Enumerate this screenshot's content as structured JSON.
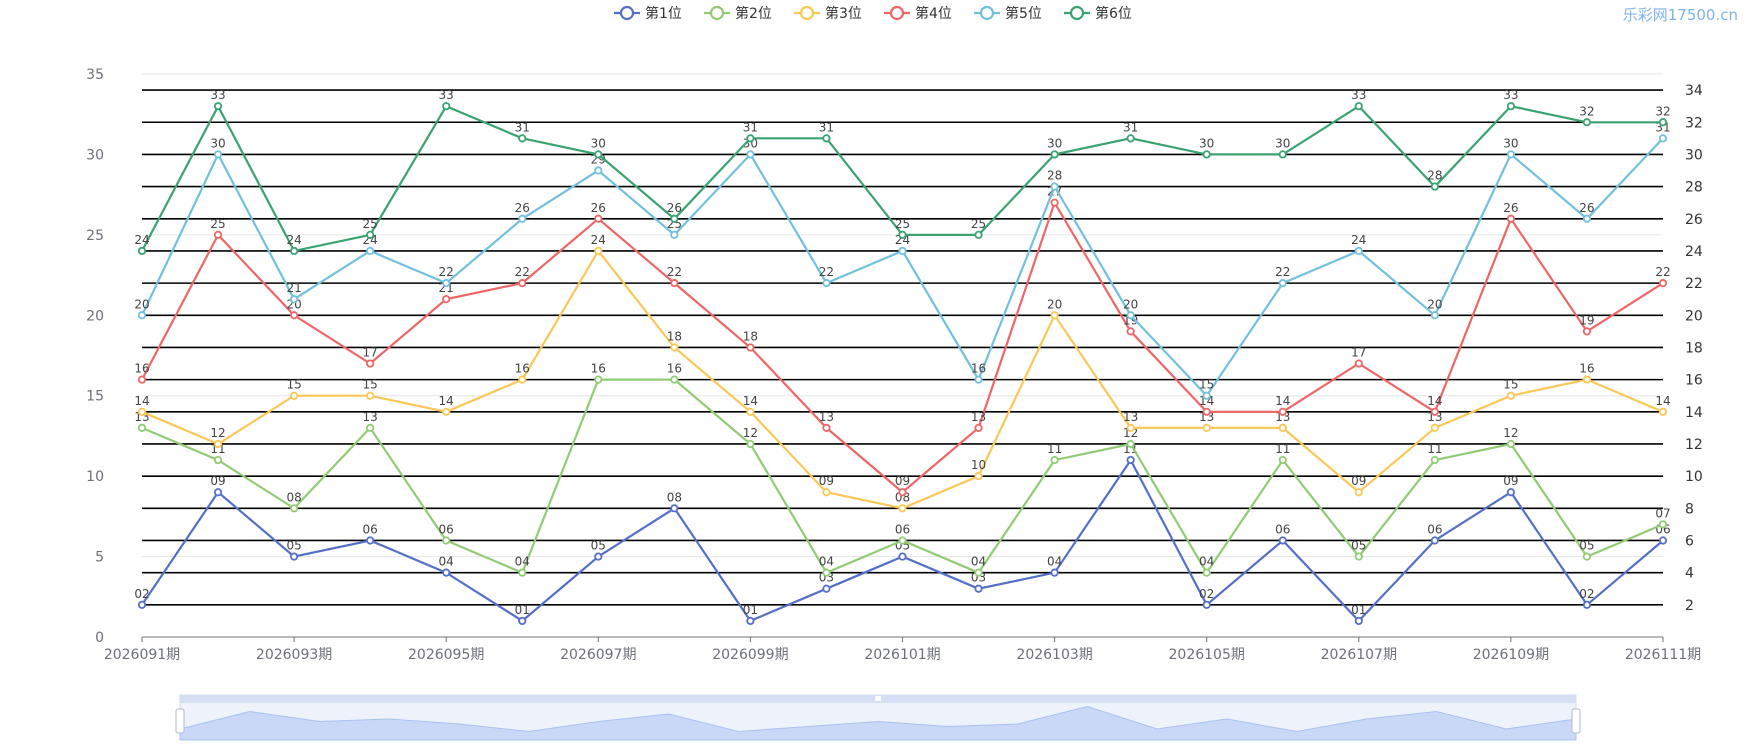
{
  "watermark": "乐彩网17500.cn",
  "chart_data": {
    "type": "line",
    "x": [
      "2026091期",
      "2026092期",
      "2026093期",
      "2026094期",
      "2026095期",
      "2026096期",
      "2026097期",
      "2026098期",
      "2026099期",
      "2026100期",
      "2026101期",
      "2026102期",
      "2026103期",
      "2026104期",
      "2026105期",
      "2026106期",
      "2026107期",
      "2026108期",
      "2026109期",
      "2026110期",
      "2026111期"
    ],
    "x_tick_labels": [
      "2026091期",
      "2026093期",
      "2026095期",
      "2026097期",
      "2026099期",
      "2026101期",
      "2026103期",
      "2026105期",
      "2026107期",
      "2026109期",
      "2026111期"
    ],
    "ylim": [
      0,
      35
    ],
    "y_ticks": [
      0,
      5,
      10,
      15,
      20,
      25,
      30,
      35
    ],
    "y2_ticks": [
      2,
      4,
      6,
      8,
      10,
      12,
      14,
      16,
      18,
      20,
      22,
      24,
      26,
      28,
      30,
      32,
      34
    ],
    "legend_position": "top-center",
    "has_zoom_slider": true,
    "series": [
      {
        "name": "第1位",
        "color": "#5470c6",
        "values": [
          2,
          9,
          5,
          6,
          4,
          1,
          5,
          8,
          1,
          3,
          5,
          3,
          4,
          11,
          2,
          6,
          1,
          6,
          9,
          2,
          6
        ],
        "labels": [
          "02",
          "09",
          "05",
          "06",
          "04",
          "01",
          "05",
          "08",
          "01",
          "03",
          "05",
          "03",
          "04",
          "11",
          "02",
          "06",
          "01",
          "06",
          "09",
          "02",
          "06"
        ]
      },
      {
        "name": "第2位",
        "color": "#91cc75",
        "values": [
          13,
          11,
          8,
          13,
          6,
          4,
          16,
          16,
          12,
          4,
          6,
          4,
          11,
          12,
          4,
          11,
          5,
          11,
          12,
          5,
          7
        ],
        "labels": [
          "13",
          "11",
          "08",
          "13",
          "06",
          "04",
          "16",
          "16",
          "12",
          "04",
          "06",
          "04",
          "11",
          "12",
          "04",
          "11",
          "05",
          "11",
          "12",
          "05",
          "07"
        ]
      },
      {
        "name": "第3位",
        "color": "#fac858",
        "values": [
          14,
          12,
          15,
          15,
          14,
          16,
          24,
          18,
          14,
          9,
          8,
          10,
          20,
          13,
          13,
          13,
          9,
          13,
          15,
          16,
          14
        ],
        "labels": [
          "14",
          "12",
          "15",
          "15",
          "14",
          "16",
          "24",
          "18",
          "14",
          "09",
          "08",
          "10",
          "20",
          "13",
          "13",
          "13",
          "09",
          "13",
          "15",
          "16",
          "14"
        ]
      },
      {
        "name": "第4位",
        "color": "#ee6666",
        "values": [
          16,
          25,
          20,
          17,
          21,
          22,
          26,
          22,
          18,
          13,
          9,
          13,
          27,
          19,
          14,
          14,
          17,
          14,
          26,
          19,
          22
        ],
        "labels": [
          "16",
          "25",
          "20",
          "17",
          "21",
          "22",
          "26",
          "22",
          "18",
          "13",
          "09",
          "13",
          "27",
          "19",
          "14",
          "14",
          "17",
          "14",
          "26",
          "19",
          "22"
        ]
      },
      {
        "name": "第5位",
        "color": "#73c0de",
        "values": [
          20,
          30,
          21,
          24,
          22,
          26,
          29,
          25,
          30,
          22,
          24,
          16,
          28,
          20,
          15,
          22,
          24,
          20,
          30,
          26,
          31
        ],
        "labels": [
          "20",
          "30",
          "21",
          "24",
          "22",
          "26",
          "29",
          "25",
          "30",
          "22",
          "24",
          "16",
          "28",
          "20",
          "15",
          "22",
          "24",
          "20",
          "30",
          "26",
          "31"
        ]
      },
      {
        "name": "第6位",
        "color": "#3ba272",
        "values": [
          24,
          33,
          24,
          25,
          33,
          31,
          30,
          26,
          31,
          31,
          25,
          25,
          30,
          31,
          30,
          30,
          33,
          28,
          33,
          32,
          32
        ],
        "labels": [
          "24",
          "33",
          "24",
          "25",
          "33",
          "31",
          "30",
          "26",
          "31",
          "31",
          "25",
          "25",
          "30",
          "31",
          "30",
          "30",
          "33",
          "28",
          "33",
          "32",
          "32"
        ]
      }
    ]
  }
}
